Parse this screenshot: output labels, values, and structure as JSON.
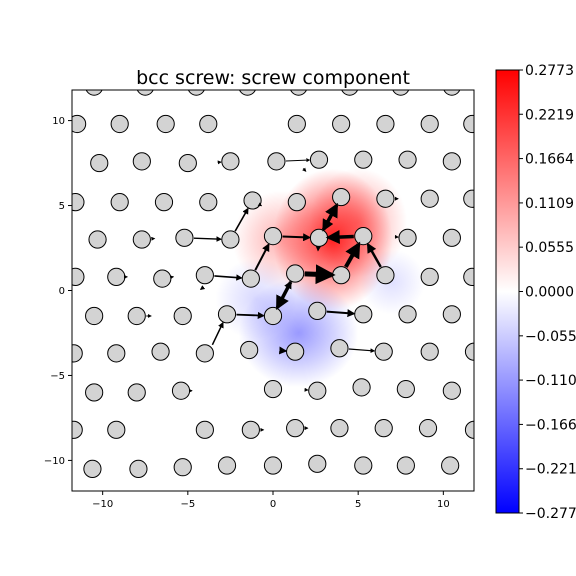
{
  "chart_data": {
    "type": "scatter",
    "title": "bcc screw: screw component",
    "xlim": [
      -11.8,
      11.8
    ],
    "ylim": [
      -11.8,
      11.8
    ],
    "x_ticks": [
      -10,
      -5,
      0,
      5,
      10
    ],
    "y_ticks": [
      10,
      5,
      0,
      -5,
      -10
    ],
    "x_tick_labels": [
      "−10",
      "−5",
      "0",
      "5",
      "10"
    ],
    "y_tick_labels": [
      "10",
      "5",
      "0",
      "−5",
      "−10"
    ],
    "colorbar": {
      "colormap": "bwr",
      "range": [
        -0.2773,
        0.2773
      ],
      "tick_values": [
        0.2773,
        0.2219,
        0.1664,
        0.1109,
        0.0555,
        0.0,
        -0.0555,
        -0.1109,
        -0.1664,
        -0.2219,
        -0.2773
      ],
      "tick_labels": [
        "0.2773",
        "0.2219",
        "0.1664",
        "0.1109",
        "0.0555",
        "0.0000",
        "−0.0555",
        "−0.1109",
        "−0.1664",
        "−0.2219",
        "−0.2773"
      ],
      "colors": {
        "max": "#ff0000",
        "mid": "#ffffff",
        "min": "#0000ff"
      }
    },
    "field_blobs": [
      {
        "x": 3.5,
        "y": 3.0,
        "value": 0.2773,
        "sx": 2.2,
        "sy": 2.6
      },
      {
        "x": 0.5,
        "y": 3.0,
        "value": 0.1,
        "sx": 1.8,
        "sy": 1.8
      },
      {
        "x": 5.0,
        "y": 4.0,
        "value": 0.12,
        "sx": 1.8,
        "sy": 2.0
      },
      {
        "x": 1.5,
        "y": -2.5,
        "value": -0.13,
        "sx": 2.2,
        "sy": 2.0
      },
      {
        "x": -1.0,
        "y": -0.5,
        "value": -0.05,
        "sx": 1.5,
        "sy": 1.5
      },
      {
        "x": 7.0,
        "y": 0.5,
        "value": -0.04,
        "sx": 1.2,
        "sy": 1.2
      }
    ],
    "atoms": [
      [
        -10.5,
        12.0
      ],
      [
        -7.5,
        12.0
      ],
      [
        -4.5,
        12.0
      ],
      [
        -1.5,
        12.0
      ],
      [
        1.5,
        12.0
      ],
      [
        4.5,
        12.0
      ],
      [
        7.5,
        12.0
      ],
      [
        10.5,
        12.0
      ],
      [
        -11.5,
        9.8
      ],
      [
        -9.0,
        9.8
      ],
      [
        -6.3,
        9.8
      ],
      [
        -3.8,
        9.8
      ],
      [
        1.4,
        9.8
      ],
      [
        4.0,
        9.8
      ],
      [
        6.6,
        9.8
      ],
      [
        9.2,
        9.8
      ],
      [
        11.7,
        9.8
      ],
      [
        -10.2,
        7.5
      ],
      [
        -7.7,
        7.6
      ],
      [
        -5.0,
        7.5
      ],
      [
        -2.5,
        7.6
      ],
      [
        0.2,
        7.6
      ],
      [
        2.7,
        7.7
      ],
      [
        5.3,
        7.7
      ],
      [
        7.9,
        7.7
      ],
      [
        10.5,
        7.6
      ],
      [
        -11.6,
        5.2
      ],
      [
        -9.0,
        5.2
      ],
      [
        -6.4,
        5.2
      ],
      [
        -3.8,
        5.2
      ],
      [
        -1.2,
        5.3
      ],
      [
        1.4,
        5.2
      ],
      [
        4.0,
        5.5
      ],
      [
        6.6,
        5.4
      ],
      [
        9.2,
        5.4
      ],
      [
        11.7,
        5.4
      ],
      [
        -10.3,
        3.0
      ],
      [
        -7.7,
        3.0
      ],
      [
        -5.2,
        3.1
      ],
      [
        -2.5,
        3.0
      ],
      [
        0.0,
        3.2
      ],
      [
        2.7,
        3.1
      ],
      [
        5.3,
        3.2
      ],
      [
        7.9,
        3.1
      ],
      [
        10.5,
        3.1
      ],
      [
        -11.6,
        0.8
      ],
      [
        -9.2,
        0.8
      ],
      [
        -6.5,
        0.7
      ],
      [
        -4.0,
        0.9
      ],
      [
        -1.3,
        0.7
      ],
      [
        1.3,
        1.0
      ],
      [
        4.0,
        0.9
      ],
      [
        6.6,
        0.9
      ],
      [
        9.2,
        0.8
      ],
      [
        11.7,
        0.8
      ],
      [
        -10.5,
        -1.5
      ],
      [
        -8.0,
        -1.5
      ],
      [
        -5.3,
        -1.5
      ],
      [
        -2.7,
        -1.4
      ],
      [
        0.0,
        -1.5
      ],
      [
        2.6,
        -1.2
      ],
      [
        5.3,
        -1.4
      ],
      [
        7.9,
        -1.4
      ],
      [
        10.5,
        -1.4
      ],
      [
        -11.7,
        -3.7
      ],
      [
        -9.2,
        -3.7
      ],
      [
        -6.6,
        -3.6
      ],
      [
        -4.0,
        -3.7
      ],
      [
        -1.4,
        -3.5
      ],
      [
        1.3,
        -3.6
      ],
      [
        3.9,
        -3.4
      ],
      [
        6.5,
        -3.6
      ],
      [
        9.2,
        -3.6
      ],
      [
        11.8,
        -3.6
      ],
      [
        -10.5,
        -6.0
      ],
      [
        -8.0,
        -6.0
      ],
      [
        -5.4,
        -5.9
      ],
      [
        0.0,
        -5.8
      ],
      [
        2.6,
        -5.9
      ],
      [
        5.2,
        -5.7
      ],
      [
        7.8,
        -5.8
      ],
      [
        10.5,
        -5.9
      ],
      [
        -11.7,
        -8.2
      ],
      [
        -9.2,
        -8.2
      ],
      [
        -4.0,
        -8.2
      ],
      [
        -1.3,
        -8.2
      ],
      [
        1.3,
        -8.1
      ],
      [
        3.9,
        -8.1
      ],
      [
        6.5,
        -8.1
      ],
      [
        9.1,
        -8.1
      ],
      [
        11.8,
        -8.2
      ],
      [
        -10.6,
        -10.5
      ],
      [
        -7.9,
        -10.5
      ],
      [
        -5.3,
        -10.4
      ],
      [
        -2.7,
        -10.3
      ],
      [
        0.0,
        -10.3
      ],
      [
        2.6,
        -10.2
      ],
      [
        5.3,
        -10.3
      ],
      [
        7.8,
        -10.3
      ],
      [
        10.4,
        -10.3
      ]
    ],
    "arrows": [
      [
        1.3,
        1.0,
        4.0,
        0.9,
        5
      ],
      [
        4.0,
        0.9,
        5.3,
        3.2,
        4
      ],
      [
        2.7,
        3.1,
        4.0,
        5.5,
        3.5
      ],
      [
        5.3,
        3.2,
        2.7,
        3.1,
        3.5
      ],
      [
        1.3,
        1.0,
        0.0,
        -1.5,
        3.5
      ],
      [
        4.0,
        5.5,
        2.7,
        3.1,
        3
      ],
      [
        6.6,
        0.9,
        5.3,
        3.2,
        2.5
      ],
      [
        0.0,
        3.2,
        2.7,
        3.1,
        2
      ],
      [
        2.6,
        -1.2,
        5.3,
        -1.4,
        2
      ],
      [
        0.0,
        -1.5,
        1.3,
        1.0,
        2
      ],
      [
        -1.3,
        0.7,
        0.0,
        3.2,
        2
      ],
      [
        0.0,
        -3.5,
        1.3,
        -3.6,
        2
      ],
      [
        -2.7,
        -1.4,
        0.0,
        -1.5,
        1.8
      ],
      [
        -2.5,
        3.0,
        -1.2,
        5.3,
        1.6
      ],
      [
        -4.0,
        0.9,
        -1.3,
        0.7,
        1.6
      ],
      [
        -3.8,
        -3.7,
        -2.7,
        -1.4,
        1.5
      ],
      [
        -5.2,
        3.1,
        -2.5,
        3.0,
        1.4
      ],
      [
        -4.6,
        -0.2,
        -3.8,
        0.4,
        1.2
      ],
      [
        2.7,
        3.1,
        2.6,
        1.8,
        1.3
      ],
      [
        3.9,
        -3.4,
        6.5,
        -3.6,
        1.2
      ],
      [
        0.2,
        7.6,
        2.7,
        7.7,
        1
      ],
      [
        1.3,
        -5.8,
        2.6,
        -5.9,
        1
      ],
      [
        -1.3,
        -8.2,
        0.0,
        -8.2,
        1
      ],
      [
        -5.4,
        -5.9,
        -4.2,
        -5.9,
        1
      ],
      [
        -6.5,
        0.7,
        -5.3,
        0.9,
        1
      ],
      [
        -7.7,
        3.0,
        -6.4,
        3.1,
        1
      ],
      [
        1.3,
        -8.1,
        2.6,
        -8.1,
        1
      ],
      [
        6.6,
        5.4,
        7.9,
        5.4,
        1
      ],
      [
        6.6,
        3.2,
        7.9,
        3.1,
        1
      ],
      [
        -3.8,
        7.5,
        -2.5,
        7.6,
        1
      ],
      [
        -9.2,
        0.8,
        -8.0,
        0.8,
        1
      ],
      [
        -8.0,
        -1.5,
        -6.6,
        -1.5,
        1
      ],
      [
        -1.2,
        5.3,
        -0.2,
        4.7,
        1
      ],
      [
        1.4,
        7.6,
        2.3,
        6.6,
        1
      ]
    ]
  }
}
